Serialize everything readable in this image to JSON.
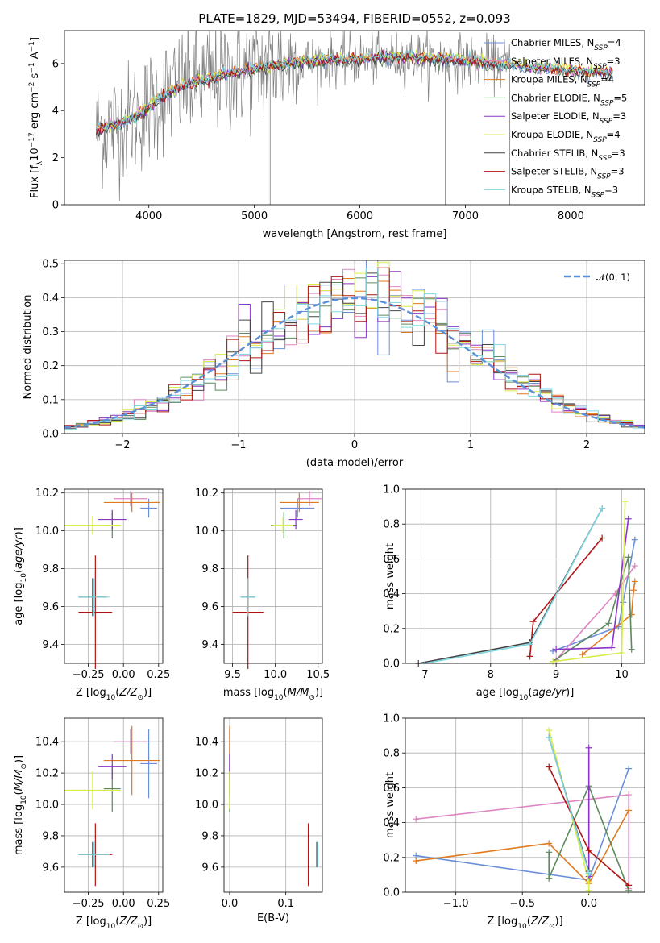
{
  "figure_title": "PLATE=1829, MJD=53494, FIBERID=0552, z=0.093",
  "colors": {
    "Chabrier MILES": "#6a8fd8",
    "Salpeter MILES": "#e085c2",
    "Kroupa MILES": "#e07a1f",
    "Chabrier ELODIE": "#5c8a5c",
    "Salpeter ELODIE": "#8b35c8",
    "Kroupa ELODIE": "#d8ec4a",
    "Chabrier STELIB": "#444444",
    "Salpeter STELIB": "#b01414",
    "Kroupa STELIB": "#7fd6e0",
    "data": "#808080",
    "normal": "#5b8fd6"
  },
  "chart_data": [
    {
      "id": "spectrum",
      "type": "line",
      "xlabel": "wavelength [Angstrom, rest frame]",
      "ylabel": "Flux [f_λ 10^-17 erg cm^-2 s^-1 A^-1]",
      "xlim": [
        3200,
        8700
      ],
      "ylim": [
        0,
        7.4
      ],
      "xticks": [
        4000,
        5000,
        6000,
        7000,
        8000
      ],
      "yticks": [
        0,
        2,
        4,
        6
      ],
      "legend_position": "upper-right",
      "legend": [
        {
          "main": "Chabrier MILES, N",
          "sub": "SSP",
          "tail": "=4"
        },
        {
          "main": "Salpeter MILES, N",
          "sub": "SSP",
          "tail": "=3"
        },
        {
          "main": "Kroupa MILES, N",
          "sub": "SSP",
          "tail": "=4"
        },
        {
          "main": "Chabrier ELODIE, N",
          "sub": "SSP",
          "tail": "=5"
        },
        {
          "main": "Salpeter ELODIE, N",
          "sub": "SSP",
          "tail": "=3"
        },
        {
          "main": "Kroupa ELODIE, N",
          "sub": "SSP",
          "tail": "=4"
        },
        {
          "main": "Chabrier STELIB, N",
          "sub": "SSP",
          "tail": "=3"
        },
        {
          "main": "Salpeter STELIB, N",
          "sub": "SSP",
          "tail": "=3"
        },
        {
          "main": "Kroupa STELIB, N",
          "sub": "SSP",
          "tail": "=3"
        }
      ],
      "continuum_approx": {
        "wavelength": [
          3500,
          3700,
          3900,
          4100,
          4300,
          4600,
          5000,
          5500,
          6000,
          6500,
          7000,
          7500,
          8000,
          8400
        ],
        "flux": [
          3.2,
          3.4,
          3.8,
          4.5,
          5.0,
          5.4,
          5.8,
          6.1,
          6.2,
          6.3,
          6.1,
          5.9,
          5.7,
          5.6
        ]
      }
    },
    {
      "id": "residuals",
      "type": "bar",
      "xlabel": "(data-model)/error",
      "ylabel": "Normed distribution",
      "xlim": [
        -2.5,
        2.5
      ],
      "ylim": [
        0,
        0.51
      ],
      "xticks": [
        -2,
        -1,
        0,
        1,
        2
      ],
      "yticks": [
        0.0,
        0.1,
        0.2,
        0.3,
        0.4,
        0.5
      ],
      "legend": "𝒩(0, 1)",
      "legend_position": "upper-right",
      "bin_width": 0.1,
      "distribution": "normal",
      "mean": 0,
      "sigma": 1
    },
    {
      "id": "age_vs_Z",
      "type": "scatter",
      "xlabel": "Z [log10(Z/Z☉)]",
      "ylabel": "age  [log10(age/yr)]",
      "xlim": [
        -0.42,
        0.28
      ],
      "ylim": [
        9.3,
        10.22
      ],
      "xticks": [
        -0.25,
        0.0,
        0.25
      ],
      "yticks": [
        9.4,
        9.6,
        9.8,
        10.0,
        10.2
      ],
      "points": [
        {
          "model": "Chabrier MILES",
          "x": 0.18,
          "y": 10.12,
          "xerr": 0.06,
          "yerr": 0.05
        },
        {
          "model": "Salpeter MILES",
          "x": 0.05,
          "y": 10.17,
          "xerr": 0.12,
          "yerr": 0.04
        },
        {
          "model": "Kroupa MILES",
          "x": 0.06,
          "y": 10.15,
          "xerr": 0.2,
          "yerr": 0.05
        },
        {
          "model": "Chabrier ELODIE",
          "x": -0.08,
          "y": 10.03,
          "xerr": 0.06,
          "yerr": 0.07
        },
        {
          "model": "Salpeter ELODIE",
          "x": -0.08,
          "y": 10.06,
          "xerr": 0.1,
          "yerr": 0.05
        },
        {
          "model": "Kroupa ELODIE",
          "x": -0.22,
          "y": 10.03,
          "xerr": 0.2,
          "yerr": 0.05
        },
        {
          "model": "Chabrier STELIB",
          "x": -0.22,
          "y": 9.65,
          "xerr": 0.1,
          "yerr": 0.1
        },
        {
          "model": "Salpeter STELIB",
          "x": -0.2,
          "y": 9.57,
          "xerr": 0.12,
          "yerr": 0.3
        },
        {
          "model": "Kroupa STELIB",
          "x": -0.21,
          "y": 9.65,
          "xerr": 0.11,
          "yerr": 0.1
        }
      ]
    },
    {
      "id": "age_vs_mass",
      "type": "scatter",
      "xlabel": "mass [log10(M/M☉)]",
      "ylabel": "",
      "xlim": [
        9.4,
        10.55
      ],
      "ylim": [
        9.3,
        10.22
      ],
      "xticks": [
        9.5,
        10.0,
        10.5
      ],
      "yticks": [
        9.4,
        9.6,
        9.8,
        10.0,
        10.2
      ],
      "points": [
        {
          "model": "Chabrier MILES",
          "x": 10.26,
          "y": 10.12,
          "xerr": 0.2,
          "yerr": 0.05
        },
        {
          "model": "Salpeter MILES",
          "x": 10.4,
          "y": 10.17,
          "xerr": 0.14,
          "yerr": 0.04
        },
        {
          "model": "Kroupa MILES",
          "x": 10.28,
          "y": 10.15,
          "xerr": 0.23,
          "yerr": 0.05
        },
        {
          "model": "Chabrier ELODIE",
          "x": 10.1,
          "y": 10.03,
          "xerr": 0.15,
          "yerr": 0.07
        },
        {
          "model": "Salpeter ELODIE",
          "x": 10.24,
          "y": 10.06,
          "xerr": 0.08,
          "yerr": 0.05
        },
        {
          "model": "Kroupa ELODIE",
          "x": 10.09,
          "y": 10.03,
          "xerr": 0.12,
          "yerr": 0.04
        },
        {
          "model": "Chabrier STELIB",
          "x": 9.68,
          "y": 9.65,
          "xerr": 0.08,
          "yerr": 0.1
        },
        {
          "model": "Salpeter STELIB",
          "x": 9.68,
          "y": 9.57,
          "xerr": 0.18,
          "yerr": 0.3
        },
        {
          "model": "Kroupa STELIB",
          "x": 9.68,
          "y": 9.65,
          "xerr": 0.09,
          "yerr": 0.1
        }
      ]
    },
    {
      "id": "weight_vs_age",
      "type": "line",
      "xlabel": "age  [log10(age/yr)]",
      "ylabel": "mass weight",
      "xlim": [
        6.7,
        10.35
      ],
      "ylim": [
        0,
        1.0
      ],
      "xticks": [
        7,
        8,
        9,
        10
      ],
      "yticks": [
        0.0,
        0.2,
        0.4,
        0.6,
        0.8,
        1.0
      ],
      "series": [
        {
          "model": "Chabrier MILES",
          "x": [
            8.95,
            9.95,
            10.02,
            10.2
          ],
          "y": [
            0.07,
            0.21,
            0.35,
            0.71
          ]
        },
        {
          "model": "Salpeter MILES",
          "x": [
            9.0,
            9.9,
            10.2
          ],
          "y": [
            0.02,
            0.4,
            0.56
          ]
        },
        {
          "model": "Kroupa MILES",
          "x": [
            9.4,
            10.15,
            10.18,
            10.2
          ],
          "y": [
            0.05,
            0.28,
            0.42,
            0.47
          ]
        },
        {
          "model": "Chabrier ELODIE",
          "x": [
            8.95,
            9.8,
            10.1,
            10.15
          ],
          "y": [
            0.01,
            0.23,
            0.61,
            0.08
          ]
        },
        {
          "model": "Salpeter ELODIE",
          "x": [
            9.0,
            9.85,
            10.1
          ],
          "y": [
            0.08,
            0.09,
            0.83
          ]
        },
        {
          "model": "Kroupa ELODIE",
          "x": [
            8.95,
            10.0,
            10.05
          ],
          "y": [
            0.01,
            0.06,
            0.93
          ]
        },
        {
          "model": "Chabrier STELIB",
          "x": [
            6.9,
            8.6,
            9.7
          ],
          "y": [
            0.0,
            0.12,
            0.89
          ]
        },
        {
          "model": "Salpeter STELIB",
          "x": [
            8.6,
            8.65,
            9.7
          ],
          "y": [
            0.04,
            0.24,
            0.72
          ]
        },
        {
          "model": "Kroupa STELIB",
          "x": [
            7.0,
            8.6,
            9.7
          ],
          "y": [
            0.0,
            0.11,
            0.89
          ]
        }
      ]
    },
    {
      "id": "mass_vs_Z",
      "type": "scatter",
      "xlabel": "Z [log10(Z/Z☉)]",
      "ylabel": "mass [log10(M/M☉)]",
      "xlim": [
        -0.42,
        0.28
      ],
      "ylim": [
        9.44,
        10.55
      ],
      "xticks": [
        -0.25,
        0.0,
        0.25
      ],
      "yticks": [
        9.6,
        9.8,
        10.0,
        10.2,
        10.4
      ],
      "points": [
        {
          "model": "Chabrier MILES",
          "x": 0.18,
          "y": 10.26,
          "xerr": 0.06,
          "yerr": 0.22
        },
        {
          "model": "Salpeter MILES",
          "x": 0.05,
          "y": 10.4,
          "xerr": 0.12,
          "yerr": 0.08
        },
        {
          "model": "Kroupa MILES",
          "x": 0.06,
          "y": 10.28,
          "xerr": 0.2,
          "yerr": 0.22
        },
        {
          "model": "Chabrier ELODIE",
          "x": -0.08,
          "y": 10.1,
          "xerr": 0.06,
          "yerr": 0.15
        },
        {
          "model": "Salpeter ELODIE",
          "x": -0.08,
          "y": 10.24,
          "xerr": 0.1,
          "yerr": 0.08
        },
        {
          "model": "Kroupa ELODIE",
          "x": -0.22,
          "y": 10.09,
          "xerr": 0.2,
          "yerr": 0.12
        },
        {
          "model": "Chabrier STELIB",
          "x": -0.22,
          "y": 9.68,
          "xerr": 0.1,
          "yerr": 0.08
        },
        {
          "model": "Salpeter STELIB",
          "x": -0.2,
          "y": 9.68,
          "xerr": 0.12,
          "yerr": 0.2
        },
        {
          "model": "Kroupa STELIB",
          "x": -0.21,
          "y": 9.68,
          "xerr": 0.11,
          "yerr": 0.08
        }
      ]
    },
    {
      "id": "mass_vs_ebv",
      "type": "scatter",
      "xlabel": "E(B-V)",
      "ylabel": "",
      "xlim": [
        -0.01,
        0.165
      ],
      "ylim": [
        9.44,
        10.55
      ],
      "xticks": [
        0.0,
        0.1
      ],
      "yticks": [
        9.6,
        9.8,
        10.0,
        10.2,
        10.4
      ],
      "points": [
        {
          "model": "Chabrier MILES",
          "x": 0.0,
          "y": 10.26,
          "xerr": 0,
          "yerr": 0.22
        },
        {
          "model": "Salpeter MILES",
          "x": 0.0,
          "y": 10.4,
          "xerr": 0,
          "yerr": 0.08
        },
        {
          "model": "Kroupa MILES",
          "x": 0.0,
          "y": 10.28,
          "xerr": 0,
          "yerr": 0.22
        },
        {
          "model": "Chabrier ELODIE",
          "x": 0.0,
          "y": 10.1,
          "xerr": 0,
          "yerr": 0.15
        },
        {
          "model": "Salpeter ELODIE",
          "x": 0.0,
          "y": 10.24,
          "xerr": 0,
          "yerr": 0.08
        },
        {
          "model": "Kroupa ELODIE",
          "x": 0.0,
          "y": 10.09,
          "xerr": 0,
          "yerr": 0.12
        },
        {
          "model": "Chabrier STELIB",
          "x": 0.155,
          "y": 9.68,
          "xerr": 0,
          "yerr": 0.08
        },
        {
          "model": "Salpeter STELIB",
          "x": 0.14,
          "y": 9.68,
          "xerr": 0,
          "yerr": 0.2
        },
        {
          "model": "Kroupa STELIB",
          "x": 0.157,
          "y": 9.68,
          "xerr": 0,
          "yerr": 0.08
        }
      ]
    },
    {
      "id": "weight_vs_Z",
      "type": "line",
      "xlabel": "Z [log10(Z/Z☉)]",
      "ylabel": "mass weight",
      "xlim": [
        -1.38,
        0.42
      ],
      "ylim": [
        0,
        1.0
      ],
      "xticks": [
        -1.0,
        -0.5,
        0.0
      ],
      "yticks": [
        0.0,
        0.2,
        0.4,
        0.6,
        0.8,
        1.0
      ],
      "series": [
        {
          "model": "Chabrier MILES",
          "x": [
            -1.3,
            0.0,
            0.3
          ],
          "y": [
            0.21,
            0.07,
            0.71
          ]
        },
        {
          "model": "Salpeter MILES",
          "x": [
            -1.3,
            0.3,
            0.3
          ],
          "y": [
            0.42,
            0.56,
            0.02
          ]
        },
        {
          "model": "Kroupa MILES",
          "x": [
            -1.3,
            -0.3,
            0.0,
            0.3
          ],
          "y": [
            0.18,
            0.28,
            0.05,
            0.47
          ]
        },
        {
          "model": "Chabrier ELODIE",
          "x": [
            -0.3,
            -0.3,
            0.0,
            0.3
          ],
          "y": [
            0.23,
            0.08,
            0.61,
            0.01
          ]
        },
        {
          "model": "Salpeter ELODIE",
          "x": [
            0.0,
            0.0
          ],
          "y": [
            0.09,
            0.83
          ]
        },
        {
          "model": "Kroupa ELODIE",
          "x": [
            -0.3,
            0.0,
            0.0
          ],
          "y": [
            0.93,
            0.06,
            0.01
          ]
        },
        {
          "model": "Chabrier STELIB",
          "x": [
            -0.3,
            0.0
          ],
          "y": [
            0.89,
            0.12
          ]
        },
        {
          "model": "Salpeter STELIB",
          "x": [
            -0.3,
            0.0,
            0.3
          ],
          "y": [
            0.72,
            0.24,
            0.04
          ]
        },
        {
          "model": "Kroupa STELIB",
          "x": [
            -0.3,
            0.0
          ],
          "y": [
            0.89,
            0.11
          ]
        }
      ]
    }
  ]
}
